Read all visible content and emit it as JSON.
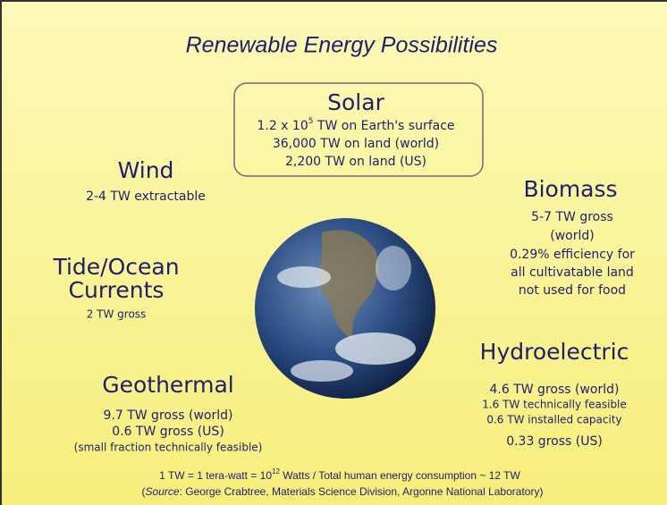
{
  "title": "Renewable Energy Possibilities",
  "solar": {
    "heading": "Solar",
    "lines": [
      {
        "base": "1.2 x 10",
        "sup": "5",
        "rest": " TW on Earth's surface"
      },
      "36,000 TW on land (world)",
      "2,200 TW on land (US)"
    ]
  },
  "wind": {
    "heading": "Wind",
    "lines": [
      "2-4 TW extractable"
    ]
  },
  "biomass": {
    "heading": "Biomass",
    "lines": [
      "5-7 TW gross",
      "(world)",
      "0.29% efficiency for",
      "all cultivatable land",
      "not used for food"
    ]
  },
  "tide_ocean": {
    "heading": [
      "Tide/Ocean",
      "Currents"
    ],
    "lines": [
      "2 TW gross"
    ]
  },
  "hydroelectric": {
    "heading": "Hydroelectric",
    "lines": [
      "4.6 TW gross (world)",
      "1.6 TW technically feasible",
      "0.6 TW installed capacity",
      "0.33 gross (US)"
    ]
  },
  "geothermal": {
    "heading": "Geothermal",
    "lines": [
      "9.7 TW gross (world)",
      "0.6 TW gross (US)",
      "(small fraction technically feasible)"
    ]
  },
  "footer": {
    "definition": {
      "base": "1 TW = 1 tera-watt = 10",
      "sup": "12",
      "rest": " Watts / Total human energy consumption ~ 12 TW"
    },
    "source": {
      "open": "(",
      "label": "Source",
      "rest": ": George Crabtree, Materials Science Division, Argonne National Laboratory)"
    }
  }
}
